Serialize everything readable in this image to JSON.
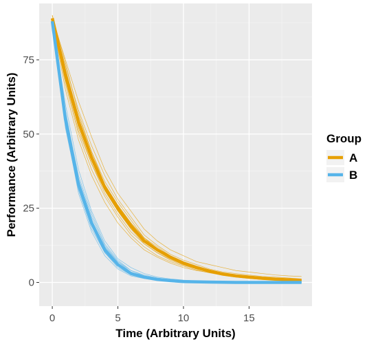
{
  "chart_data": {
    "type": "line",
    "xlabel": "Time (Arbitrary Units)",
    "ylabel": "Performance (Arbitrary Units)",
    "xlim": [
      -1,
      19.8
    ],
    "ylim": [
      -8,
      94
    ],
    "x_ticks": [
      0,
      5,
      10,
      15
    ],
    "y_ticks": [
      0,
      25,
      50,
      75
    ],
    "x_tick_labels": [
      "0",
      "5",
      "10",
      "15"
    ],
    "y_tick_labels": [
      "0",
      "25",
      "50",
      "75"
    ],
    "grid": true,
    "legend_position": "right",
    "legend_title": "Group",
    "x": [
      0,
      1,
      2,
      3,
      4,
      5,
      6,
      7,
      8,
      9,
      10,
      11,
      12,
      13,
      14,
      15,
      16,
      17,
      18,
      19
    ],
    "series": [
      {
        "name": "A",
        "color": "#E69F00",
        "values": [
          89,
          70,
          54,
          42,
          32,
          25,
          19,
          14,
          11,
          8.5,
          6.5,
          5,
          3.8,
          2.8,
          2.2,
          1.8,
          1.4,
          1.1,
          0.9,
          0.7
        ],
        "replicates": [
          [
            89,
            75,
            61,
            49,
            38,
            30,
            24,
            18,
            14,
            11,
            9,
            7,
            6,
            5,
            4,
            3.5,
            3,
            2.5,
            2.2,
            2
          ],
          [
            88,
            65,
            48,
            36,
            27,
            20,
            15,
            11,
            8.5,
            6.5,
            5,
            4,
            3.3,
            2.5,
            2,
            1.6,
            1.2,
            1,
            0.8,
            0.6
          ],
          [
            89,
            72,
            56,
            44,
            34,
            27,
            21,
            15,
            12,
            9,
            7,
            5.5,
            4.2,
            3.2,
            2.5,
            2,
            1.6,
            1.2,
            1,
            0.8
          ],
          [
            90,
            68,
            51,
            40,
            30,
            23,
            17,
            13,
            10,
            7.5,
            5.8,
            4.5,
            3.5,
            2.6,
            2,
            1.5,
            1.2,
            0.9,
            0.7,
            0.5
          ],
          [
            89,
            73,
            58,
            46,
            36,
            28,
            22,
            16,
            12.5,
            9.5,
            7.5,
            6,
            4.5,
            3.5,
            3,
            2.5,
            2,
            1.8,
            1.5,
            1.2
          ],
          [
            88,
            67,
            50,
            38,
            29,
            22,
            16,
            12,
            9,
            7,
            5.5,
            4.2,
            3.2,
            2.4,
            1.8,
            1.3,
            1,
            0.8,
            0.6,
            0.4
          ],
          [
            89,
            70,
            53,
            41,
            31,
            24,
            18,
            14,
            10.5,
            8,
            6.2,
            4.8,
            3.7,
            2.9,
            2.2,
            1.7,
            1.3,
            1,
            0.8,
            0.6
          ],
          [
            90,
            74,
            57,
            44,
            33,
            26,
            20,
            15,
            11.5,
            9,
            7,
            5.4,
            4.1,
            3.1,
            2.4,
            1.9,
            1.5,
            1.2,
            0.9,
            0.7
          ],
          [
            89,
            69,
            55,
            43,
            33,
            26,
            20,
            15,
            11,
            8.5,
            6.6,
            5,
            3.9,
            3,
            2.3,
            1.8,
            1.4,
            1.1,
            0.9,
            0.7
          ],
          [
            88,
            71,
            52,
            40,
            31,
            24,
            18,
            13,
            10,
            7.8,
            6,
            4.6,
            3.6,
            2.7,
            2.1,
            1.6,
            1.2,
            1,
            0.8,
            0.6
          ]
        ]
      },
      {
        "name": "B",
        "color": "#56B4E9",
        "values": [
          88,
          55,
          33,
          20,
          11,
          6,
          3,
          1.8,
          1,
          0.6,
          0.3,
          0.2,
          0.1,
          0.05,
          0,
          0,
          0,
          0,
          0,
          0
        ],
        "replicates": [
          [
            88,
            60,
            38,
            24,
            14,
            8,
            5,
            3,
            1.8,
            1.2,
            0.8,
            0.5,
            0.3,
            0.2,
            0.1,
            0.1,
            0,
            0,
            0,
            0
          ],
          [
            89,
            52,
            31,
            18,
            10,
            5,
            2.5,
            1.5,
            0.8,
            0.4,
            0.2,
            0.1,
            0,
            0,
            0,
            0,
            0,
            0,
            0,
            0
          ],
          [
            88,
            56,
            34,
            21,
            12,
            7,
            4,
            2.5,
            1.5,
            1,
            0.6,
            0.4,
            0.2,
            0.1,
            0,
            0,
            0,
            0,
            0,
            0
          ],
          [
            87,
            54,
            32,
            19,
            10,
            5.5,
            2.8,
            1.6,
            0.9,
            0.5,
            0.3,
            0.2,
            0.1,
            0,
            0,
            0,
            0,
            0,
            0,
            0
          ],
          [
            89,
            58,
            35,
            22,
            12.5,
            7,
            3.5,
            2,
            1.2,
            0.7,
            0.4,
            0.2,
            0.1,
            0.05,
            0,
            0,
            0,
            0,
            0,
            0
          ],
          [
            88,
            53,
            30,
            17,
            9,
            4.5,
            2.2,
            1.3,
            0.7,
            0.4,
            0.2,
            0.1,
            0,
            0,
            0,
            0,
            0,
            0,
            0,
            0
          ],
          [
            87,
            57,
            36,
            23,
            13,
            7.5,
            4,
            2.2,
            1.3,
            0.8,
            0.5,
            0.3,
            0.2,
            0.1,
            0,
            0,
            0,
            0,
            0,
            0
          ],
          [
            88,
            55,
            33,
            20,
            11,
            6,
            3,
            1.8,
            1,
            0.6,
            0.3,
            0.2,
            0.1,
            0.05,
            0,
            0,
            0,
            0,
            0,
            0
          ]
        ]
      }
    ]
  }
}
